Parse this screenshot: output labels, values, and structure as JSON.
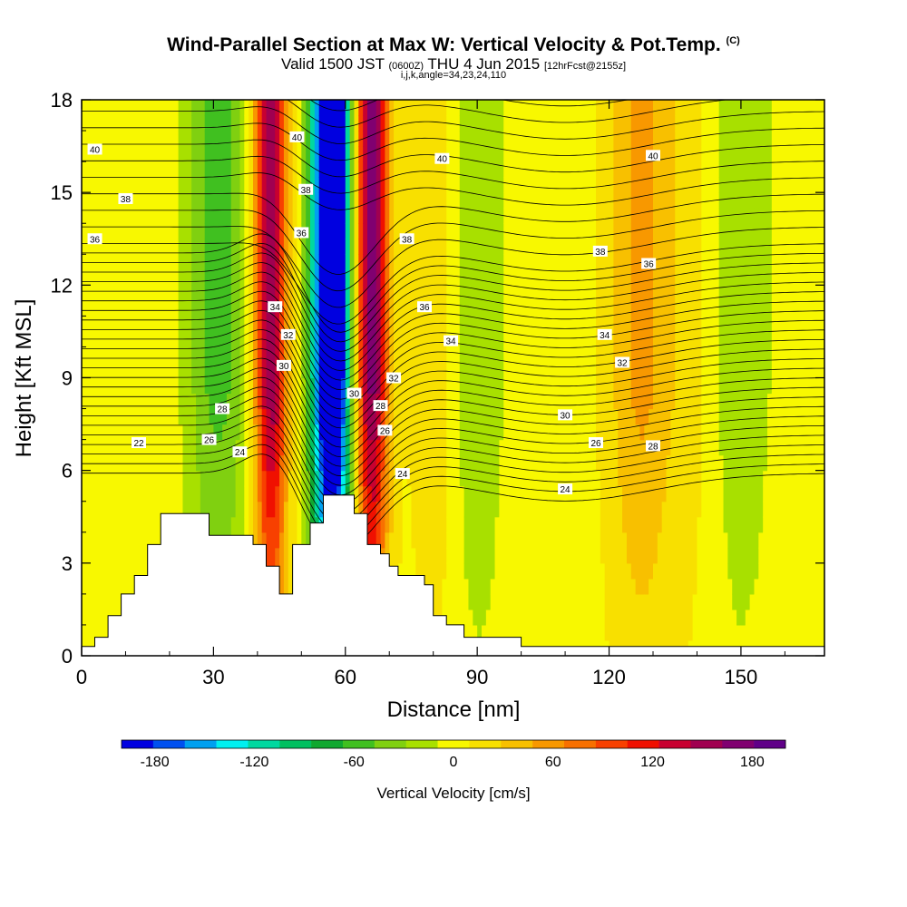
{
  "header": {
    "title": "Wind-Parallel Section at Max W: Vertical Velocity & Pot.Temp.",
    "title_tag": "(C)",
    "subtitle_pre": "Valid 1500 JST",
    "subtitle_small": "(0600Z)",
    "subtitle_mid": "THU 4 Jun 2015",
    "subtitle_fcst": "[12hrFcst@2155z]",
    "subtitle2": "i,j,k,angle=34,23,24,110"
  },
  "chart_data": {
    "type": "heatmap",
    "xlabel": "Distance [nm]",
    "ylabel": "Height [Kft MSL]",
    "xlim": [
      0,
      169
    ],
    "ylim": [
      0,
      18
    ],
    "xticks": [
      0,
      30,
      60,
      90,
      120,
      150
    ],
    "yticks": [
      0,
      3,
      6,
      9,
      12,
      15,
      18
    ],
    "colorbar": {
      "title": "Vertical Velocity [cm/s]",
      "min": -200,
      "max": 200,
      "ticks": [
        -180,
        -120,
        -60,
        0,
        60,
        120,
        180
      ],
      "colors": [
        "#0000e0",
        "#0050f0",
        "#00a0f0",
        "#00f0f0",
        "#00d8a0",
        "#00c060",
        "#10a830",
        "#40c020",
        "#80d010",
        "#a8e000",
        "#f8f800",
        "#f8e000",
        "#f8c000",
        "#f89800",
        "#f87000",
        "#f84000",
        "#f01000",
        "#c80030",
        "#a00050",
        "#800070",
        "#600088"
      ]
    },
    "field": {
      "background_w": 3,
      "features": [
        {
          "x": 58,
          "w": -190,
          "tilt": 0.0
        },
        {
          "x": 55,
          "w": -140,
          "tilt": 0.0
        },
        {
          "x": 43,
          "w": 160,
          "tilt": 0.0
        },
        {
          "x": 66,
          "w": 170,
          "tilt": 0.0
        },
        {
          "x": 31,
          "w": -60,
          "tilt": 0.0
        },
        {
          "x": 83,
          "w": 40,
          "tilt": 0.0
        },
        {
          "x": 88,
          "w": -50,
          "tilt": 0.0
        },
        {
          "x": 127,
          "w": 50,
          "tilt": 0.0
        },
        {
          "x": 138,
          "w": 15,
          "tilt": 0.0
        },
        {
          "x": 150,
          "w": -30,
          "tilt": 0.0
        }
      ]
    },
    "theta_contours": {
      "levels": [
        22,
        24,
        26,
        28,
        30,
        32,
        34,
        36,
        38,
        40
      ],
      "labels": [
        {
          "text": "40",
          "x": 3,
          "y": 16.4
        },
        {
          "text": "38",
          "x": 10,
          "y": 14.8
        },
        {
          "text": "36",
          "x": 3,
          "y": 13.5
        },
        {
          "text": "22",
          "x": 13,
          "y": 6.9
        },
        {
          "text": "26",
          "x": 29,
          "y": 7.0
        },
        {
          "text": "24",
          "x": 36,
          "y": 6.6
        },
        {
          "text": "28",
          "x": 32,
          "y": 8.0
        },
        {
          "text": "30",
          "x": 46,
          "y": 9.4
        },
        {
          "text": "32",
          "x": 47,
          "y": 10.4
        },
        {
          "text": "34",
          "x": 44,
          "y": 11.3
        },
        {
          "text": "36",
          "x": 50,
          "y": 13.7
        },
        {
          "text": "38",
          "x": 51,
          "y": 15.1
        },
        {
          "text": "40",
          "x": 49,
          "y": 16.8
        },
        {
          "text": "30",
          "x": 62,
          "y": 8.5
        },
        {
          "text": "28",
          "x": 68,
          "y": 8.1
        },
        {
          "text": "26",
          "x": 69,
          "y": 7.3
        },
        {
          "text": "24",
          "x": 73,
          "y": 5.9
        },
        {
          "text": "32",
          "x": 71,
          "y": 9.0
        },
        {
          "text": "36",
          "x": 78,
          "y": 11.3
        },
        {
          "text": "38",
          "x": 74,
          "y": 13.5
        },
        {
          "text": "34",
          "x": 84,
          "y": 10.2
        },
        {
          "text": "40",
          "x": 82,
          "y": 16.1
        },
        {
          "text": "30",
          "x": 110,
          "y": 7.8
        },
        {
          "text": "26",
          "x": 117,
          "y": 6.9
        },
        {
          "text": "24",
          "x": 110,
          "y": 5.4
        },
        {
          "text": "28",
          "x": 130,
          "y": 6.8
        },
        {
          "text": "32",
          "x": 123,
          "y": 9.5
        },
        {
          "text": "34",
          "x": 119,
          "y": 10.4
        },
        {
          "text": "38",
          "x": 118,
          "y": 13.1
        },
        {
          "text": "36",
          "x": 129,
          "y": 12.7
        },
        {
          "text": "40",
          "x": 130,
          "y": 16.2
        }
      ]
    },
    "terrain": [
      [
        0,
        0.3
      ],
      [
        3,
        0.3
      ],
      [
        3,
        0.6
      ],
      [
        6,
        0.6
      ],
      [
        6,
        1.3
      ],
      [
        9,
        1.3
      ],
      [
        9,
        2.0
      ],
      [
        12,
        2.0
      ],
      [
        12,
        2.6
      ],
      [
        15,
        2.6
      ],
      [
        15,
        3.6
      ],
      [
        18,
        3.6
      ],
      [
        18,
        4.6
      ],
      [
        29,
        4.6
      ],
      [
        29,
        3.9
      ],
      [
        39,
        3.9
      ],
      [
        39,
        3.6
      ],
      [
        42,
        3.6
      ],
      [
        42,
        2.9
      ],
      [
        45,
        2.9
      ],
      [
        45,
        2.0
      ],
      [
        48,
        2.0
      ],
      [
        48,
        3.6
      ],
      [
        52,
        3.6
      ],
      [
        52,
        4.3
      ],
      [
        55,
        4.3
      ],
      [
        55,
        5.2
      ],
      [
        62,
        5.2
      ],
      [
        62,
        4.6
      ],
      [
        65,
        4.6
      ],
      [
        65,
        3.6
      ],
      [
        68,
        3.6
      ],
      [
        68,
        3.3
      ],
      [
        70,
        3.3
      ],
      [
        70,
        2.9
      ],
      [
        72,
        2.9
      ],
      [
        72,
        2.6
      ],
      [
        78,
        2.6
      ],
      [
        78,
        2.3
      ],
      [
        80,
        2.3
      ],
      [
        80,
        1.3
      ],
      [
        83,
        1.3
      ],
      [
        83,
        1.0
      ],
      [
        87,
        1.0
      ],
      [
        87,
        0.6
      ],
      [
        100,
        0.6
      ],
      [
        100,
        0.3
      ],
      [
        169,
        0.3
      ]
    ]
  }
}
